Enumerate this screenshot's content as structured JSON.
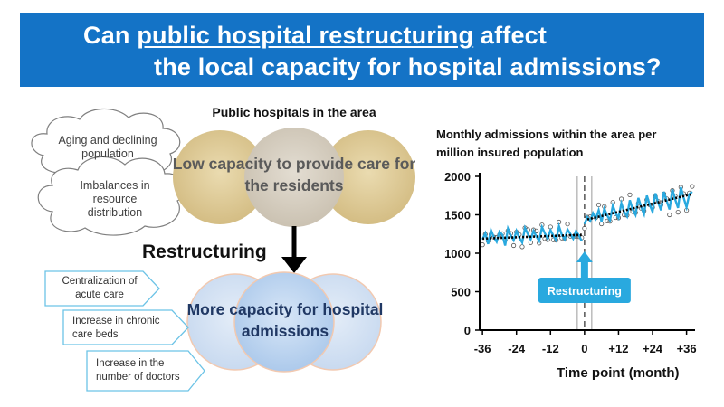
{
  "banner": {
    "line1_highlight": "public hospital restructuring",
    "line1_prefix": "Can ",
    "line1_suffix": " affect",
    "line2": "the local capacity for hospital admissions?"
  },
  "problems": {
    "cloud1": "Aging and declining population",
    "cloud2": "Imbalances in resource distribution"
  },
  "hospitals": {
    "title": "Public hospitals in the area",
    "low_capacity": "Low capacity to provide care for the residents",
    "more_capacity": "More capacity for hospital admissions"
  },
  "restructuring_label": "Restructuring",
  "interventions": [
    "Centralization of acute care",
    "Increase in chronic care beds",
    "Increase in the number of doctors"
  ],
  "colors": {
    "banner": "#1473c6",
    "series_line": "#29a9df",
    "trend_line": "#000000",
    "callout": "#29a9df"
  },
  "chart_data": {
    "type": "line",
    "title": "Monthly admissions within the area per million insured population",
    "xlabel": "Time point (month)",
    "ylabel": "",
    "x_ticks": [
      -36,
      -24,
      -12,
      0,
      12,
      24,
      36
    ],
    "x_tick_labels": [
      "-36",
      "-24",
      "-12",
      "0",
      "+12",
      "+24",
      "+36"
    ],
    "y_ticks": [
      0,
      500,
      1000,
      1500,
      2000
    ],
    "xlim": [
      -37,
      39
    ],
    "ylim": [
      0,
      2000
    ],
    "annotation": "Restructuring",
    "intervention_month": 0,
    "series": [
      {
        "kind": "observed",
        "x": [
          -36,
          -35,
          -34,
          -33,
          -32,
          -31,
          -30,
          -29,
          -28,
          -27,
          -26,
          -25,
          -24,
          -23,
          -22,
          -21,
          -20,
          -19,
          -18,
          -17,
          -16,
          -15,
          -14,
          -13,
          -12,
          -11,
          -10,
          -9,
          -8,
          -7,
          -6,
          -5,
          -4,
          -3,
          -2,
          -1,
          0,
          1,
          2,
          3,
          4,
          5,
          6,
          7,
          8,
          9,
          10,
          11,
          12,
          13,
          14,
          15,
          16,
          17,
          18,
          19,
          20,
          21,
          22,
          23,
          24,
          25,
          26,
          27,
          28,
          29,
          30,
          31,
          32,
          33,
          34,
          35,
          36,
          37,
          38
        ],
        "values": [
          1180,
          1260,
          1120,
          1300,
          1210,
          1150,
          1280,
          1240,
          1100,
          1320,
          1230,
          1170,
          1290,
          1200,
          1140,
          1330,
          1250,
          1180,
          1290,
          1220,
          1160,
          1340,
          1260,
          1190,
          1300,
          1230,
          1170,
          1350,
          1240,
          1180,
          1310,
          1250,
          1190,
          1290,
          1230,
          1160,
          1380,
          1470,
          1420,
          1520,
          1450,
          1560,
          1410,
          1580,
          1490,
          1430,
          1620,
          1520,
          1460,
          1650,
          1540,
          1480,
          1690,
          1570,
          1500,
          1720,
          1600,
          1510,
          1750,
          1630,
          1540,
          1780,
          1660,
          1560,
          1800,
          1680,
          1570,
          1830,
          1700,
          1590,
          1860,
          1720,
          1600,
          1770,
          1800
        ]
      },
      {
        "kind": "fitted",
        "x_pre": [
          -36,
          -1
        ],
        "y_pre": [
          1190,
          1240
        ],
        "x_post": [
          1,
          38
        ],
        "y_post": [
          1440,
          1770
        ]
      }
    ]
  }
}
